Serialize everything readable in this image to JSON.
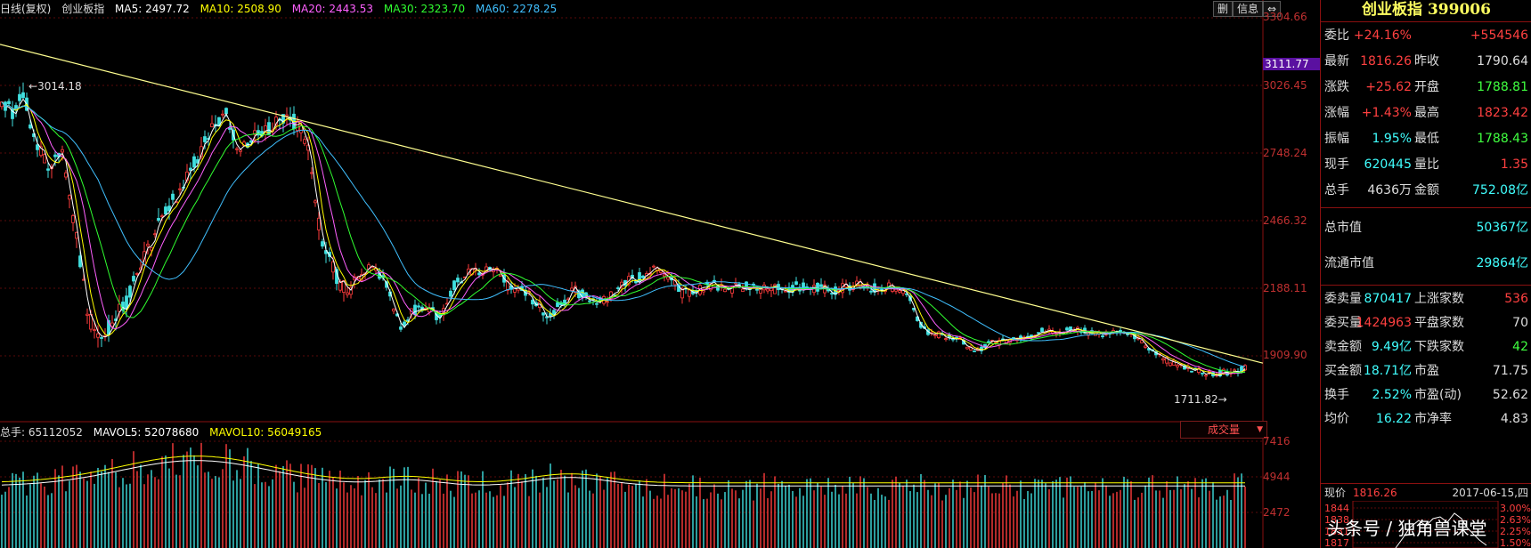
{
  "ma_legend": {
    "period": "日线(复权)",
    "name": "创业板指",
    "ma5": "MA5: 2497.72",
    "ma10": "MA10: 2508.90",
    "ma20": "MA20: 2443.53",
    "ma30": "MA30: 2323.70",
    "ma60": "MA60: 2278.25",
    "colors": {
      "ma5": "#ffffff",
      "ma10": "#ffff00",
      "ma20": "#ff60ff",
      "ma30": "#30ff30",
      "ma60": "#40c0ff"
    }
  },
  "top_buttons": [
    "删",
    "信息",
    "⇔"
  ],
  "price_axis": {
    "labels": [
      "3304.66",
      "3111.77",
      "3026.45",
      "2748.24",
      "2466.32",
      "2188.11",
      "1909.90"
    ],
    "highlight": "3111.77"
  },
  "annotations": {
    "high": "3014.18",
    "low": "1711.82"
  },
  "volume_legend": {
    "total": "总手: 65112052",
    "mavol5": "MAVOL5: 52078680",
    "mavol10": "MAVOL10: 56049165"
  },
  "volume_tag": "成交量",
  "volume_axis": {
    "labels": [
      "7416",
      "4944",
      "2472"
    ]
  },
  "chart_data": {
    "type": "candlestick",
    "title": "创业板指",
    "ylim": [
      1711.82,
      3304.66
    ],
    "annotated_high": 3014.18,
    "annotated_low": 1711.82,
    "last_close": 1816.26
  },
  "panel": {
    "title": "创业板指 399006",
    "rows": [
      {
        "l1": "委比",
        "v1": "+24.16%",
        "c1": "up",
        "l2": "",
        "v2": "+554546",
        "c2": "up"
      },
      {
        "l1": "最新",
        "v1": "1816.26",
        "c1": "up",
        "l2": "昨收",
        "v2": "1790.64",
        "c2": "white"
      },
      {
        "l1": "涨跌",
        "v1": "+25.62",
        "c1": "up",
        "l2": "开盘",
        "v2": "1788.81",
        "c2": "down"
      },
      {
        "l1": "涨幅",
        "v1": "+1.43%",
        "c1": "up",
        "l2": "最高",
        "v2": "1823.42",
        "c2": "up"
      },
      {
        "l1": "振幅",
        "v1": "1.95%",
        "c1": "cyan",
        "l2": "最低",
        "v2": "1788.43",
        "c2": "down"
      },
      {
        "l1": "现手",
        "v1": "620445",
        "c1": "cyan",
        "l2": "量比",
        "v2": "1.35",
        "c2": "up"
      },
      {
        "l1": "总手",
        "v1": "4636万",
        "c1": "white",
        "l2": "金额",
        "v2": "752.08亿",
        "c2": "cyan"
      }
    ],
    "cap_rows": [
      {
        "label": "总市值",
        "value": "50367亿"
      },
      {
        "label": "流通市值",
        "value": "29864亿"
      }
    ],
    "stat_rows": [
      {
        "l1": "委卖量",
        "v1": "870417",
        "c1": "cyan",
        "l2": "上涨家数",
        "v2": "536",
        "c2": "up"
      },
      {
        "l1": "委买量",
        "v1": "1424963",
        "c1": "up",
        "l2": "平盘家数",
        "v2": "70",
        "c2": "white"
      },
      {
        "l1": "卖金额",
        "v1": "9.49亿",
        "c1": "cyan",
        "l2": "下跌家数",
        "v2": "42",
        "c2": "down"
      },
      {
        "l1": "买金额",
        "v1": "18.71亿",
        "c1": "cyan",
        "l2": "市盈",
        "v2": "71.75",
        "c2": "white"
      },
      {
        "l1": "换手",
        "v1": "2.52%",
        "c1": "cyan",
        "l2": "市盈(动)",
        "v2": "52.62",
        "c2": "white"
      },
      {
        "l1": "均价",
        "v1": "16.22",
        "c1": "cyan",
        "l2": "市净率",
        "v2": "4.83",
        "c2": "white"
      }
    ],
    "mini": {
      "label": "现价",
      "price": "1816.26",
      "date": "2017-06-15,四",
      "left_axis": [
        "1844",
        "1838",
        "1831",
        "1817"
      ],
      "right_axis": [
        "3.00%",
        "2.63%",
        "2.25%",
        "1.50%"
      ]
    }
  },
  "watermark": "头条号 / 独角兽课堂"
}
